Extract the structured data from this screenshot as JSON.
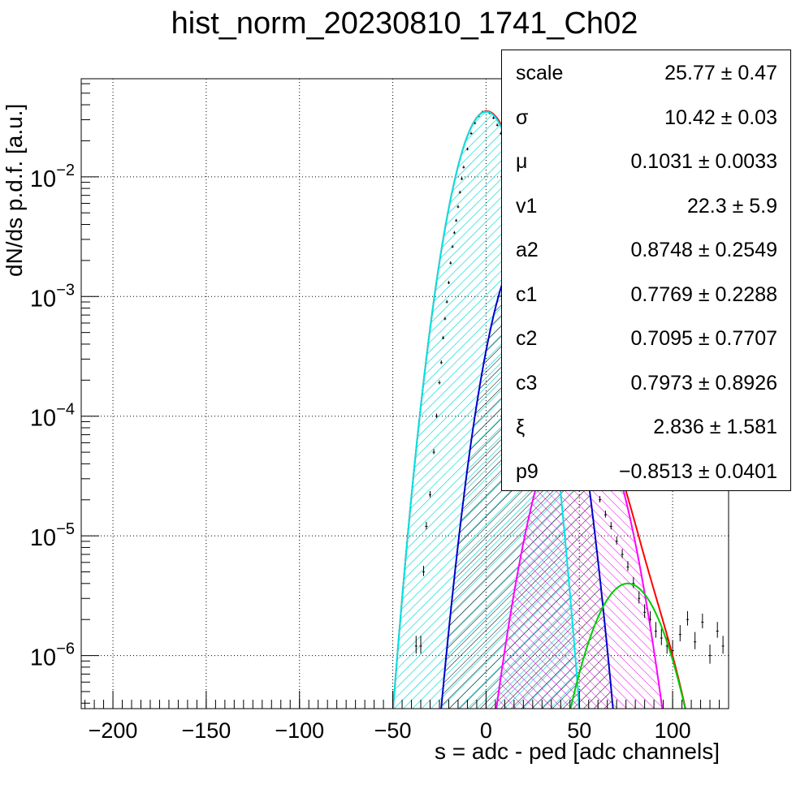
{
  "chart_data": {
    "type": "line",
    "title": "hist_norm_20230810_1741_Ch02",
    "xlabel": "s = adc - ped [adc channels]",
    "ylabel": "dN/ds p.d.f. [a.u.]",
    "xlim": [
      -217,
      130
    ],
    "ylim_log": [
      3.6e-07,
      0.066
    ],
    "yscale": "log",
    "grid": true,
    "x_ticks": [
      -200,
      -150,
      -100,
      -50,
      0,
      50,
      100
    ],
    "x_tick_labels": [
      "−200",
      "−150",
      "−100",
      "−50",
      "0",
      "50",
      "100"
    ],
    "y_ticks": [
      1e-06,
      1e-05,
      0.0001,
      0.001,
      0.01
    ],
    "y_tick_labels": [
      {
        "base": "10",
        "exp": "−6"
      },
      {
        "base": "10",
        "exp": "−5"
      },
      {
        "base": "10",
        "exp": "−4"
      },
      {
        "base": "10",
        "exp": "−3"
      },
      {
        "base": "10",
        "exp": "−2"
      }
    ],
    "series": [
      {
        "name": "",
        "color": "#00e5e5",
        "hatch": "cyan",
        "mu": 0.1031,
        "sigma": 10.42,
        "amp": 0.035
      },
      {
        "name": "",
        "color": "#0000cc",
        "hatch": "black",
        "mu": 22.0,
        "sigma": 10.9,
        "amp": 0.0027
      },
      {
        "name": "",
        "color": "#ff00ff",
        "hatch": "magenta",
        "mu": 50.0,
        "sigma": 13.0,
        "amp": 0.000125
      },
      {
        "name": "",
        "color": "#00cc00",
        "hatch": "none",
        "mu": 76.0,
        "sigma": 14.0,
        "amp": 4e-06
      },
      {
        "name": "",
        "color": "#ff0000",
        "hatch": "none",
        "sum": true
      }
    ],
    "data_points": [
      {
        "x": -37.5,
        "y": 1.2e-06
      },
      {
        "x": -35,
        "y": 1.2e-06
      },
      {
        "x": -33.5,
        "y": 5e-06
      },
      {
        "x": -32,
        "y": 1.2e-05
      },
      {
        "x": -30,
        "y": 2.2e-05
      },
      {
        "x": -28,
        "y": 5e-05
      },
      {
        "x": -26.5,
        "y": 0.0001
      },
      {
        "x": -25,
        "y": 0.00019
      },
      {
        "x": -24,
        "y": 0.00028
      },
      {
        "x": -23,
        "y": 0.00045
      },
      {
        "x": -22,
        "y": 0.00065
      },
      {
        "x": -21,
        "y": 0.0009
      },
      {
        "x": -20,
        "y": 0.0013
      },
      {
        "x": -19,
        "y": 0.0019
      },
      {
        "x": -18,
        "y": 0.0026
      },
      {
        "x": -17,
        "y": 0.0034
      },
      {
        "x": -16,
        "y": 0.0043
      },
      {
        "x": -15,
        "y": 0.0056
      },
      {
        "x": -14,
        "y": 0.0074
      },
      {
        "x": -13,
        "y": 0.0096
      },
      {
        "x": -12,
        "y": 0.012
      },
      {
        "x": -10,
        "y": 0.017
      },
      {
        "x": -8,
        "y": 0.023
      },
      {
        "x": -6,
        "y": 0.028
      },
      {
        "x": -4,
        "y": 0.032
      },
      {
        "x": -2,
        "y": 0.0345
      },
      {
        "x": 0,
        "y": 0.035
      },
      {
        "x": 2,
        "y": 0.034
      },
      {
        "x": 4,
        "y": 0.031
      },
      {
        "x": 6,
        "y": 0.027
      },
      {
        "x": 8,
        "y": 0.023
      },
      {
        "x": 10,
        "y": 0.018
      },
      {
        "x": 12,
        "y": 0.013
      },
      {
        "x": 14,
        "y": 0.009
      },
      {
        "x": 16,
        "y": 0.006
      },
      {
        "x": 18,
        "y": 0.004
      },
      {
        "x": 20,
        "y": 0.003
      },
      {
        "x": 22,
        "y": 0.0025
      },
      {
        "x": 25,
        "y": 0.0019
      },
      {
        "x": 28,
        "y": 0.0013
      },
      {
        "x": 31,
        "y": 0.0008
      },
      {
        "x": 34,
        "y": 0.00048
      },
      {
        "x": 37,
        "y": 0.00027
      },
      {
        "x": 40,
        "y": 0.00016
      },
      {
        "x": 43,
        "y": 0.00011
      },
      {
        "x": 46,
        "y": 8e-05
      },
      {
        "x": 49,
        "y": 6e-05
      },
      {
        "x": 52,
        "y": 4.5e-05
      },
      {
        "x": 55,
        "y": 3.5e-05
      },
      {
        "x": 58,
        "y": 2.6e-05
      },
      {
        "x": 61,
        "y": 2e-05
      },
      {
        "x": 64,
        "y": 1.5e-05
      },
      {
        "x": 67,
        "y": 1.2e-05
      },
      {
        "x": 70,
        "y": 9e-06
      },
      {
        "x": 73,
        "y": 7e-06
      },
      {
        "x": 76,
        "y": 5.5e-06
      },
      {
        "x": 79,
        "y": 4e-06
      },
      {
        "x": 82,
        "y": 3e-06
      },
      {
        "x": 85,
        "y": 2.3e-06
      },
      {
        "x": 88,
        "y": 2e-06
      },
      {
        "x": 91,
        "y": 1.6e-06
      },
      {
        "x": 94,
        "y": 1.4e-06
      },
      {
        "x": 97,
        "y": 1.2e-06
      },
      {
        "x": 100,
        "y": 1.1e-06
      },
      {
        "x": 104,
        "y": 1.5e-06
      },
      {
        "x": 108,
        "y": 2e-06
      },
      {
        "x": 112,
        "y": 1.3e-06
      },
      {
        "x": 116,
        "y": 1.9e-06
      },
      {
        "x": 120,
        "y": 1e-06
      },
      {
        "x": 124,
        "y": 1.6e-06
      },
      {
        "x": 127,
        "y": 1.2e-06
      }
    ]
  },
  "stats": [
    {
      "key": "scale",
      "value": "25.77 ± 0.47"
    },
    {
      "key": "σ",
      "value": "10.42 ± 0.03"
    },
    {
      "key": "μ",
      "value": "0.1031 ± 0.0033"
    },
    {
      "key": "v1",
      "value": "22.3 ± 5.9"
    },
    {
      "key": "a2",
      "value": "0.8748 ± 0.2549"
    },
    {
      "key": "c1",
      "value": "0.7769 ± 0.2288"
    },
    {
      "key": "c2",
      "value": "0.7095 ± 0.7707"
    },
    {
      "key": "c3",
      "value": "0.7973 ± 0.8926"
    },
    {
      "key": "ξ",
      "value": "2.836 ± 1.581"
    },
    {
      "key": "p9",
      "value": "−0.8513 ± 0.0401"
    }
  ]
}
